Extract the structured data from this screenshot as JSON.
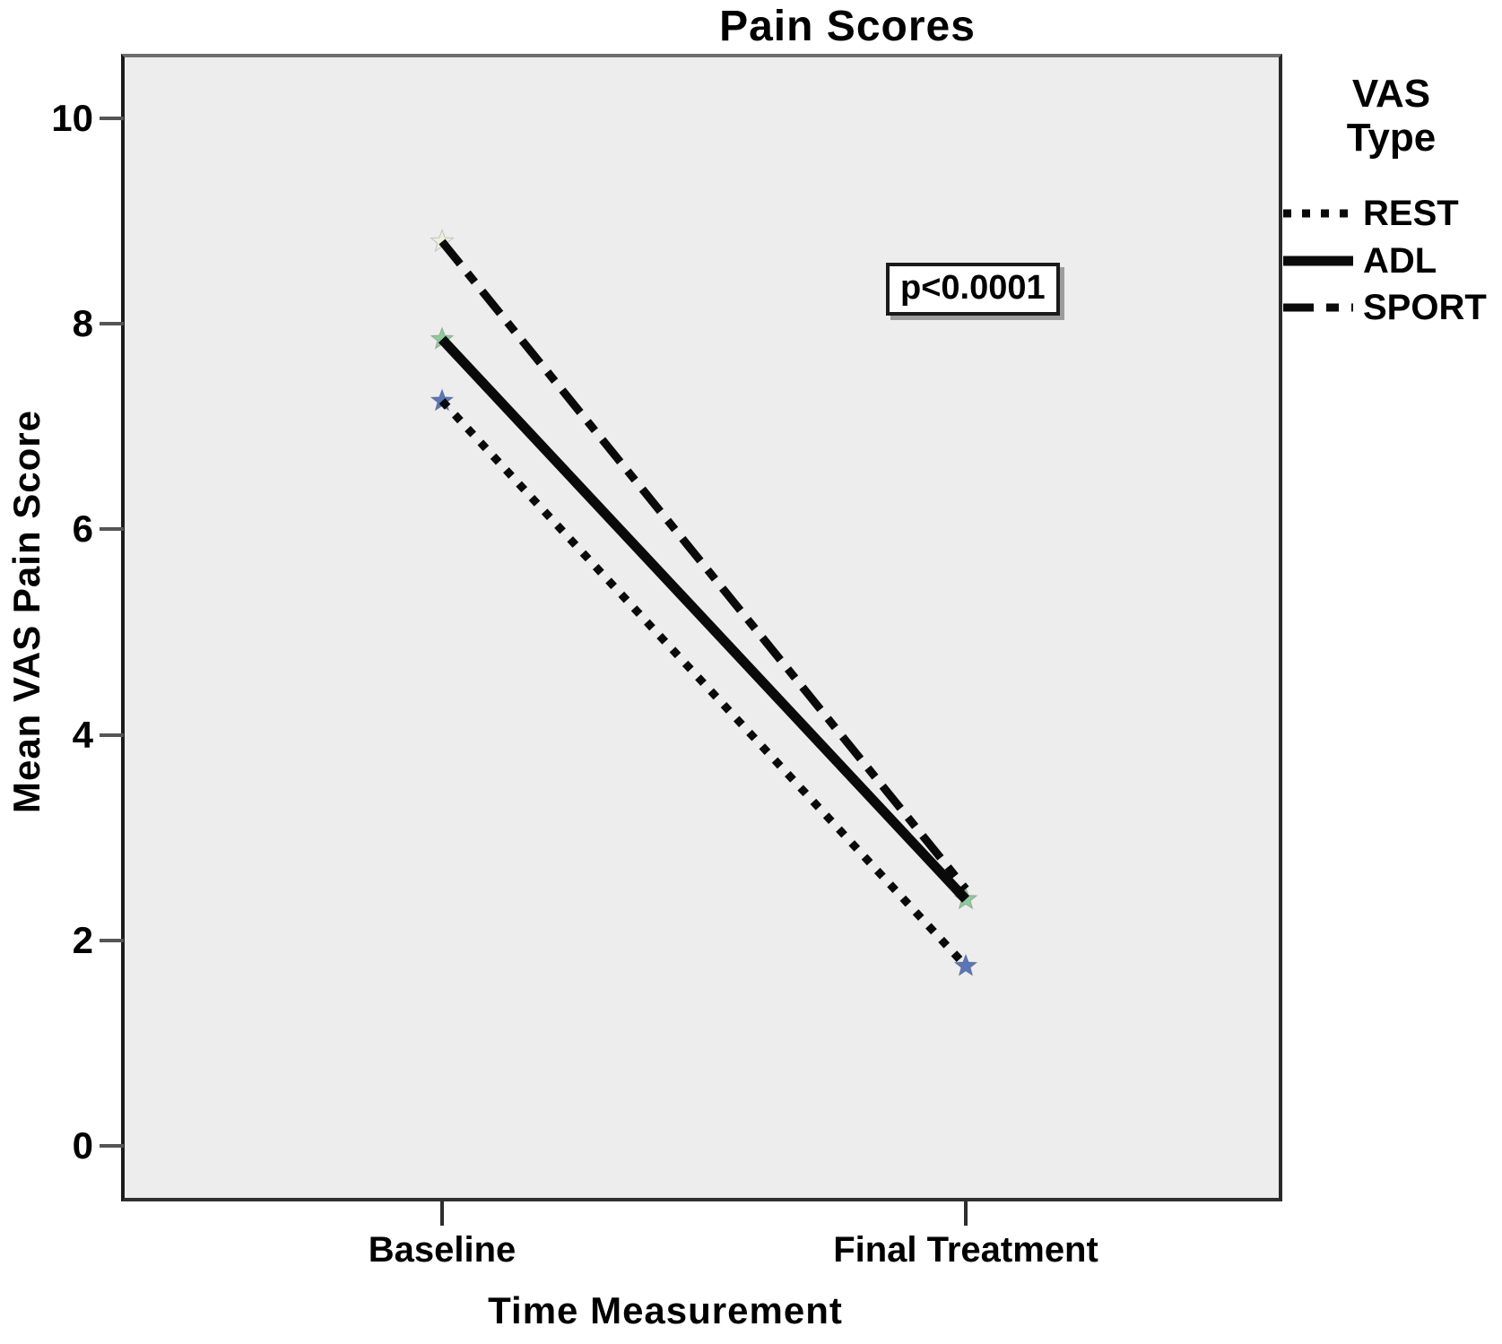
{
  "title": "Pain Scores",
  "annotation_box": {
    "text": "p<0.0001"
  },
  "legend": {
    "title_lines": [
      "VAS",
      "Type"
    ],
    "items": [
      "REST",
      "ADL",
      "SPORT"
    ]
  },
  "colors": {
    "line": "#0a0a0a",
    "plot_background": "#ededee",
    "rest_marker": "#5b76b8",
    "adl_marker": "#8fc99c",
    "sport_marker": "#eeeedd"
  },
  "chart_data": {
    "type": "line",
    "title": "Pain Scores",
    "xlabel": "Time Measurement",
    "ylabel": "Mean VAS Pain Score",
    "categories": [
      "Baseline",
      "Final Treatment"
    ],
    "ylim": [
      0,
      10
    ],
    "yticks": [
      10,
      8,
      6,
      4,
      2,
      0
    ],
    "grid": false,
    "legend_title": "VAS Type",
    "legend_position": "right",
    "annotation": "p<0.0001",
    "series": [
      {
        "name": "REST",
        "values": [
          7.25,
          1.75
        ],
        "line_style": "dotted",
        "marker": "star",
        "marker_color": "#5b76b8",
        "endpoint_markers": [
          true,
          true
        ]
      },
      {
        "name": "ADL",
        "values": [
          7.85,
          2.4
        ],
        "line_style": "solid",
        "marker": "star",
        "marker_color": "#8fc99c",
        "endpoint_markers": [
          true,
          true
        ]
      },
      {
        "name": "SPORT",
        "values": [
          8.8,
          2.5
        ],
        "line_style": "dashdot",
        "marker": "star",
        "marker_color": "#eeeedd",
        "endpoint_markers": [
          true,
          false
        ]
      }
    ]
  }
}
